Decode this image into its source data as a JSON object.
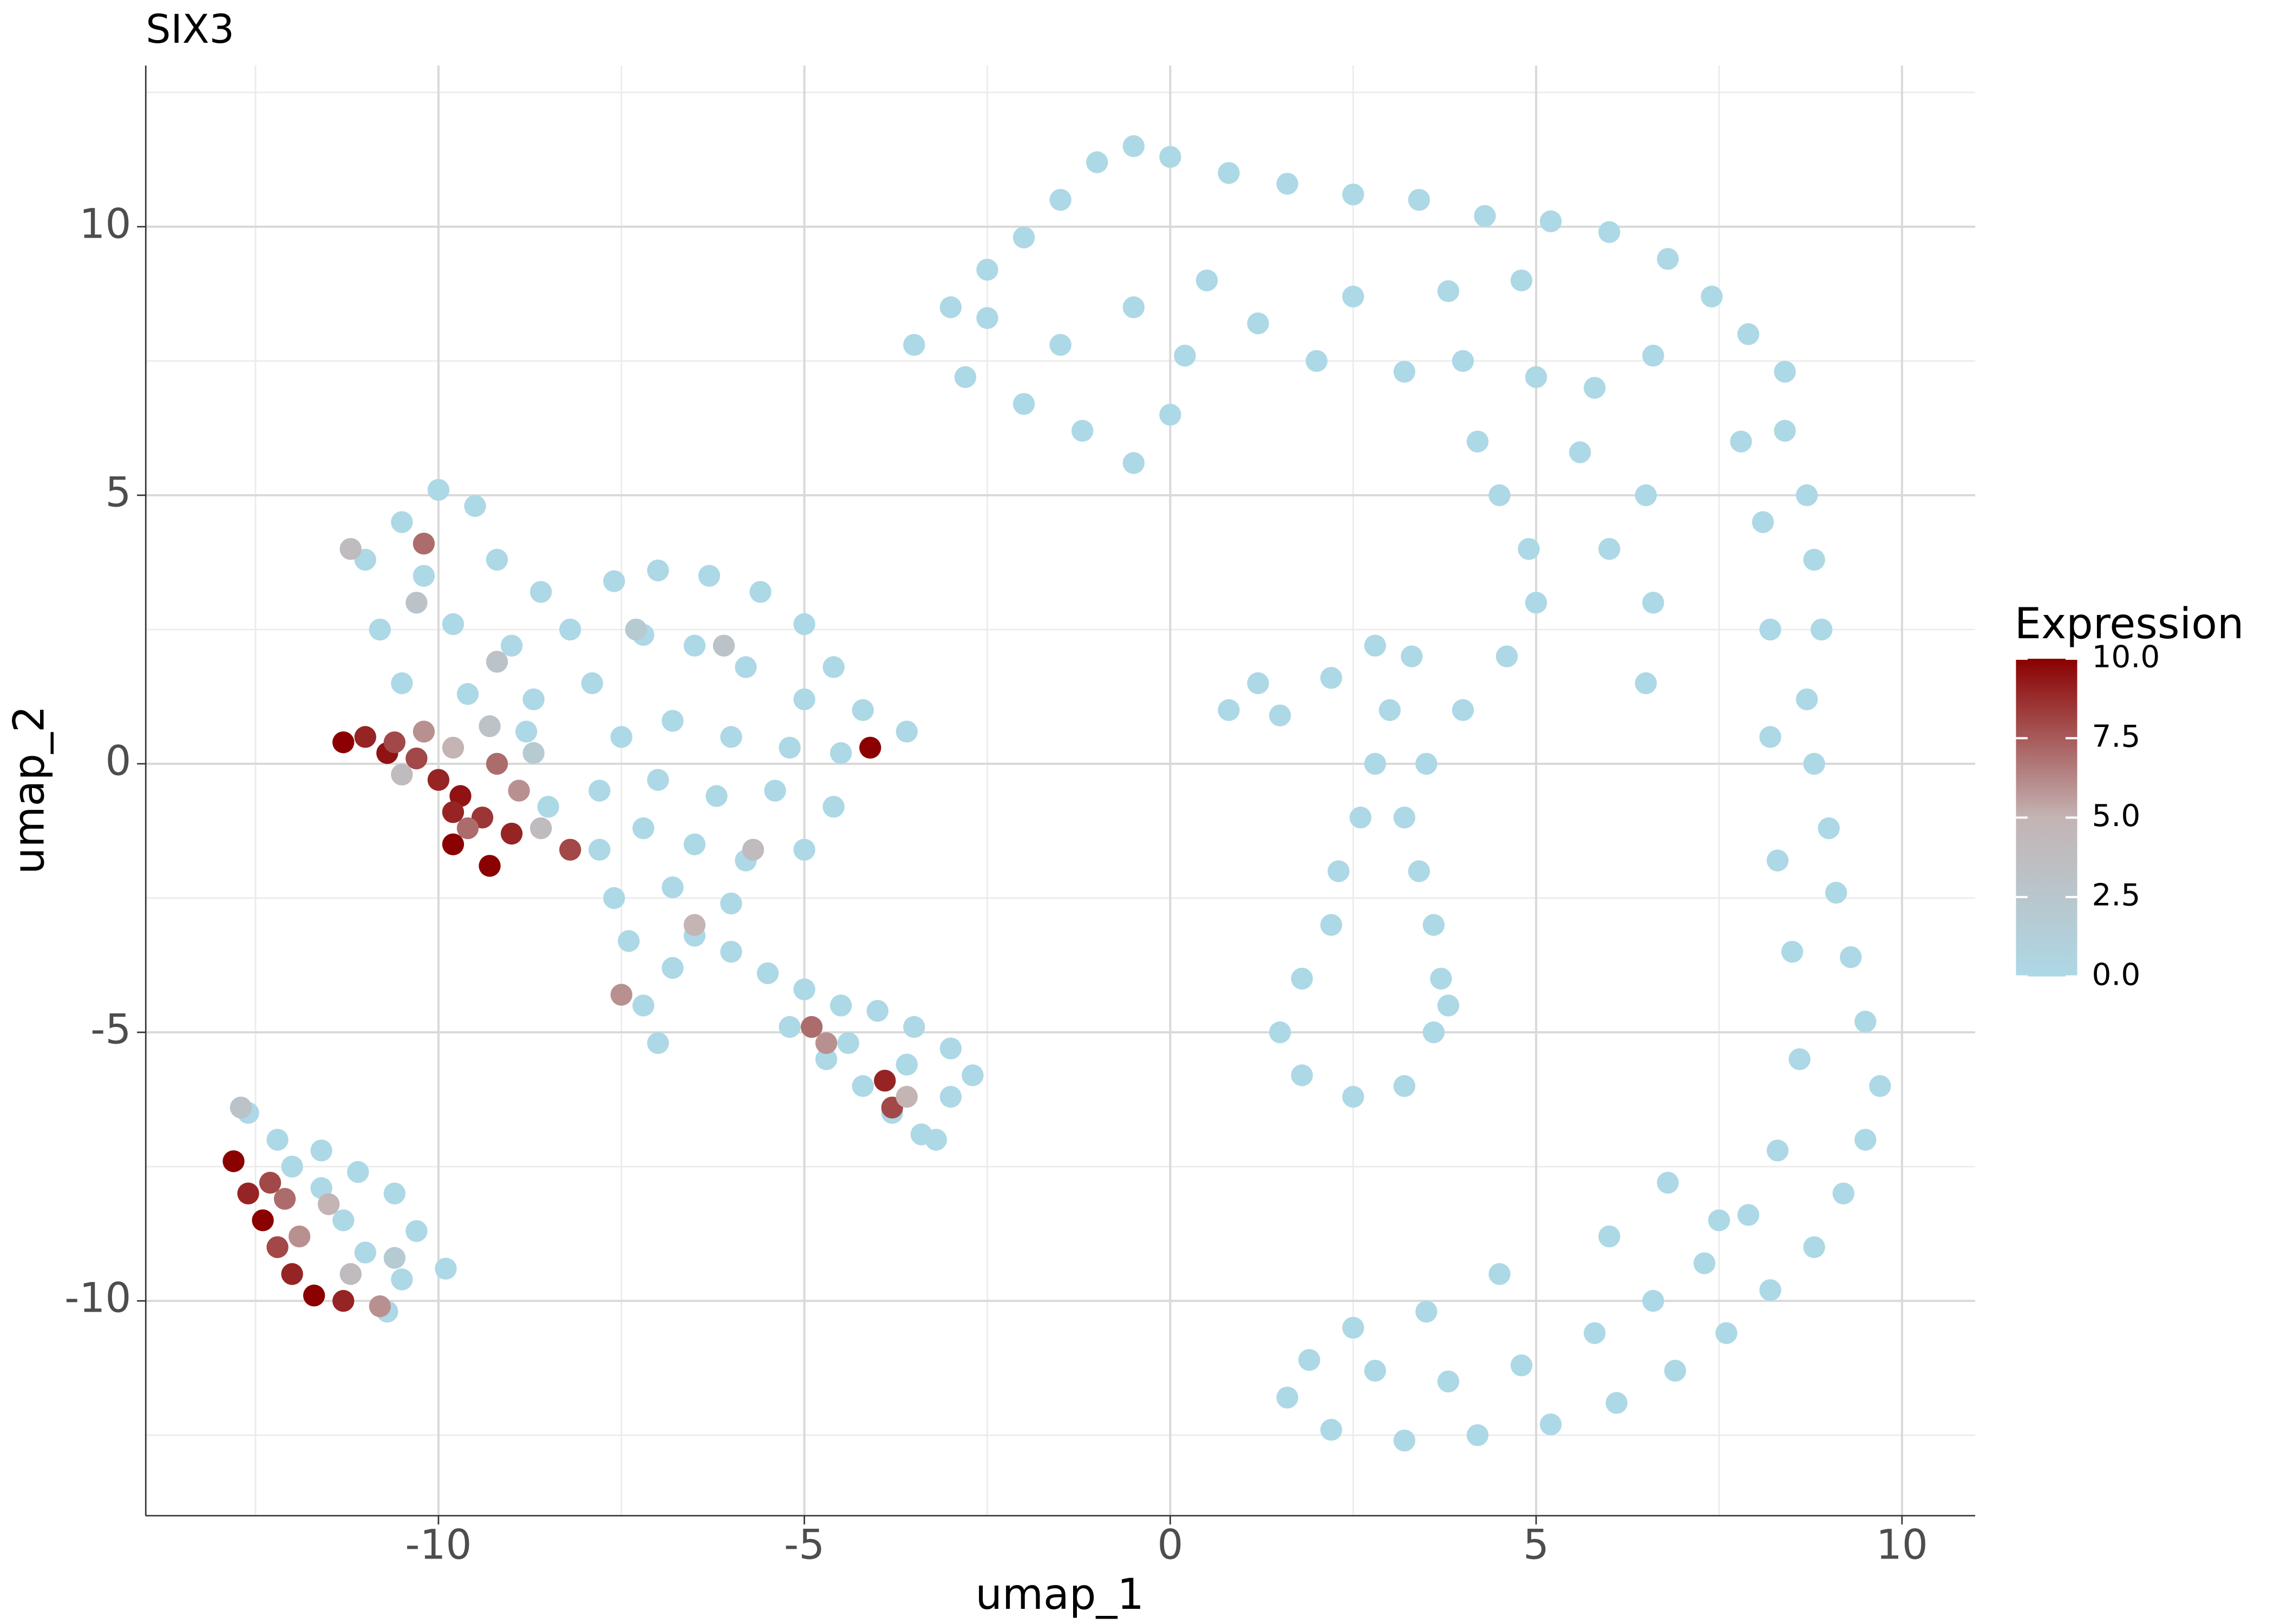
{
  "chart_data": {
    "type": "scatter",
    "title": "SIX3",
    "x_label": "umap_1",
    "y_label": "umap_2",
    "xlim": [
      -14,
      11
    ],
    "ylim": [
      -14,
      13
    ],
    "xticks": [
      -10,
      -5,
      0,
      5,
      10
    ],
    "yticks": [
      -10,
      -5,
      0,
      5,
      10
    ],
    "grid": true,
    "colorbar": {
      "title": "Expression",
      "lim": [
        0,
        10
      ],
      "colors": [
        "#add8e6",
        "#c4b4b4",
        "#8b0000"
      ],
      "ticks": [
        {
          "value": 0,
          "label": "0.0"
        },
        {
          "value": 2.5,
          "label": "2.5"
        },
        {
          "value": 5,
          "label": "5.0"
        },
        {
          "value": 7.5,
          "label": "7.5"
        },
        {
          "value": 10,
          "label": "10.0"
        }
      ]
    },
    "x": [
      -10.5,
      -10,
      -9.5,
      -11,
      -10.2,
      -9.2,
      -8.6,
      -10.8,
      -9.8,
      -9,
      -8.2,
      -7.6,
      -7,
      -6.3,
      -5.6,
      -5,
      -4.6,
      -4.2,
      -3.6,
      -10.5,
      -9.6,
      -8.7,
      -7.9,
      -7.2,
      -6.5,
      -5.8,
      -5,
      -7.5,
      -6.8,
      -6,
      -5.2,
      -4.5,
      -7.8,
      -7,
      -6.2,
      -5.4,
      -4.6,
      -7.8,
      -7.2,
      -6.5,
      -5.8,
      -5,
      -7.6,
      -6.8,
      -6,
      -7.4,
      -6.8,
      -7.2,
      -7,
      -8.5,
      -8.8,
      -6.5,
      -11.3,
      -11,
      -10.7,
      -10.3,
      -10,
      -9.7,
      -9.4,
      -9.8,
      -9.3,
      -9.6,
      -10.2,
      -9.8,
      -9.2,
      -8.9,
      -9,
      -10.5,
      -9.3,
      -8.7,
      -8.2,
      -8.6,
      -10.3,
      -11.2,
      -10.2,
      -9.2,
      -7.3,
      -6.1,
      -4.1,
      -7.5,
      -6.5,
      -5.7,
      -9.8,
      -10.6,
      -6,
      -5.5,
      -5,
      -4.5,
      -4,
      -3.5,
      -3,
      -2.7,
      -5.2,
      -4.7,
      -4.2,
      -3.8,
      -3.4,
      -3,
      -3.6,
      -4.4,
      -3.2,
      -3.9,
      -3.8,
      -4.7,
      -4.9,
      -3.6,
      -12.6,
      -12.2,
      -11.6,
      -11.1,
      -10.6,
      -10.3,
      -9.9,
      -10.5,
      -11,
      -11.3,
      -11.6,
      -12,
      -10.7,
      -12.8,
      -12.6,
      -12.4,
      -12.2,
      -12,
      -11.7,
      -11.3,
      -11.9,
      -11.5,
      -12.1,
      -11.2,
      -10.8,
      -12.7,
      -10.6,
      -12.3,
      -3.5,
      -3,
      -2.5,
      -2,
      -1.5,
      -1,
      -0.5,
      0,
      0.8,
      1.6,
      2.5,
      3.4,
      4.3,
      5.2,
      6,
      6.8,
      7.4,
      7.9,
      8.4,
      -2.8,
      -2,
      -1.2,
      -0.5,
      0,
      -1.5,
      -0.5,
      0.5,
      1.2,
      2,
      2.5,
      3.2,
      4,
      5,
      5.8,
      6.6,
      3.8,
      4.8,
      0.2,
      -2.5,
      8.4,
      8.7,
      8.8,
      8.9,
      8.7,
      8.8,
      9,
      9.1,
      9.3,
      9.5,
      9.7,
      9.5,
      9.2,
      8.8,
      8.2,
      7.6,
      6.9,
      6.1,
      5.2,
      4.2,
      3.2,
      2.2,
      1.6,
      1.9,
      2.8,
      3.8,
      4.8,
      5.8,
      6.6,
      7.3,
      7.9,
      8.3,
      8.6,
      8.5,
      8.3,
      8.2,
      8.2,
      8.1,
      7.8,
      6.8,
      7.5,
      6,
      2.5,
      3.5,
      4.5,
      4.2,
      4.5,
      4.9,
      5,
      4.6,
      4,
      3.5,
      3.2,
      3.4,
      3.6,
      3.7,
      3.6,
      3.2,
      2.5,
      1.8,
      1.5,
      1.8,
      2.2,
      2.3,
      2.6,
      2.8,
      3,
      3.3,
      1.5,
      0.8,
      1.2,
      2.2,
      2.8,
      6,
      6.6,
      6.5,
      5.6,
      6.5,
      3.8
    ],
    "y": [
      4.5,
      5.1,
      4.8,
      3.8,
      3.5,
      3.8,
      3.2,
      2.5,
      2.6,
      2.2,
      2.5,
      3.4,
      3.6,
      3.5,
      3.2,
      2.6,
      1.8,
      1,
      0.6,
      1.5,
      1.3,
      1.2,
      1.5,
      2.4,
      2.2,
      1.8,
      1.2,
      0.5,
      0.8,
      0.5,
      0.3,
      0.2,
      -0.5,
      -0.3,
      -0.6,
      -0.5,
      -0.8,
      -1.6,
      -1.2,
      -1.5,
      -1.8,
      -1.6,
      -2.5,
      -2.3,
      -2.6,
      -3.3,
      -3.8,
      -4.5,
      -5.2,
      -0.8,
      0.6,
      -3.2,
      0.4,
      0.5,
      0.2,
      0.1,
      -0.3,
      -0.6,
      -1,
      -1.5,
      -1.9,
      -1.2,
      0.6,
      0.3,
      0,
      -0.5,
      -1.3,
      -0.2,
      0.7,
      0.2,
      -1.6,
      -1.2,
      3,
      4,
      4.1,
      1.9,
      2.5,
      2.2,
      0.3,
      -4.3,
      -3,
      -1.6,
      -0.9,
      0.4,
      -3.5,
      -3.9,
      -4.2,
      -4.5,
      -4.6,
      -4.9,
      -5.3,
      -5.8,
      -4.9,
      -5.5,
      -6,
      -6.5,
      -6.9,
      -6.2,
      -5.6,
      -5.2,
      -7,
      -5.9,
      -6.4,
      -5.2,
      -4.9,
      -6.2,
      -6.5,
      -7,
      -7.2,
      -7.6,
      -8,
      -8.7,
      -9.4,
      -9.6,
      -9.1,
      -8.5,
      -7.9,
      -7.5,
      -10.2,
      -7.4,
      -8,
      -8.5,
      -9,
      -9.5,
      -9.9,
      -10,
      -8.8,
      -8.2,
      -8.1,
      -9.5,
      -10.1,
      -6.4,
      -9.2,
      -7.8,
      7.8,
      8.5,
      9.2,
      9.8,
      10.5,
      11.2,
      11.5,
      11.3,
      11,
      10.8,
      10.6,
      10.5,
      10.2,
      10.1,
      9.9,
      9.4,
      8.7,
      8,
      7.3,
      7.2,
      6.7,
      6.2,
      5.6,
      6.5,
      7.8,
      8.5,
      9,
      8.2,
      7.5,
      8.7,
      7.3,
      7.5,
      7.2,
      7,
      7.6,
      8.8,
      9,
      7.6,
      8.3,
      6.2,
      5,
      3.8,
      2.5,
      1.2,
      0,
      -1.2,
      -2.4,
      -3.6,
      -4.8,
      -6,
      -7,
      -8,
      -9,
      -9.8,
      -10.6,
      -11.3,
      -11.9,
      -12.3,
      -12.5,
      -12.6,
      -12.4,
      -11.8,
      -11.1,
      -11.3,
      -11.5,
      -11.2,
      -10.6,
      -10,
      -9.3,
      -8.4,
      -7.2,
      -5.5,
      -3.5,
      -1.8,
      0.5,
      2.5,
      4.5,
      6,
      -7.8,
      -8.5,
      -8.8,
      -10.5,
      -10.2,
      -9.5,
      6,
      5,
      4,
      3,
      2,
      1,
      0,
      -1,
      -2,
      -3,
      -4,
      -5,
      -6,
      -6.2,
      -5.8,
      -5,
      -4,
      -3,
      -2,
      -1,
      0,
      1,
      2,
      0.9,
      1,
      1.5,
      1.6,
      2.2,
      4,
      3,
      5,
      5.8,
      1.5,
      -4.5
    ],
    "expression": [
      0,
      0,
      0,
      0,
      0,
      0,
      0,
      0,
      0,
      0,
      0,
      0,
      0,
      0,
      0,
      0,
      0,
      0,
      0,
      0,
      0,
      0,
      0,
      0,
      0,
      0,
      0,
      0,
      0,
      0,
      0,
      0,
      0,
      0,
      0,
      0,
      0,
      0,
      0,
      0,
      0,
      0,
      0,
      0,
      0,
      0,
      0,
      0,
      0,
      0,
      0,
      0,
      10,
      9,
      9.5,
      8,
      9,
      9.5,
      8.5,
      10,
      10,
      7,
      6,
      5,
      7,
      6,
      9,
      4,
      3,
      2,
      8,
      4,
      3,
      4,
      7,
      3,
      2,
      3,
      10,
      6,
      5,
      4,
      9,
      8,
      0,
      0,
      0,
      0,
      0,
      0,
      0,
      0,
      0,
      0,
      0,
      0,
      0,
      0,
      0,
      0,
      0,
      9,
      8,
      6,
      7,
      5,
      0,
      0,
      0,
      0,
      0,
      0,
      0,
      0,
      0,
      0,
      0,
      0,
      0,
      10,
      9,
      10,
      8,
      9,
      10,
      9,
      6,
      5,
      7,
      4,
      6,
      3,
      2,
      8,
      0,
      0,
      0,
      0,
      0,
      0,
      0,
      0,
      0,
      0,
      0,
      0,
      0,
      0,
      0,
      0,
      0,
      0,
      0,
      0,
      0,
      0,
      0,
      0,
      0,
      0,
      0,
      0,
      0,
      0,
      0,
      0,
      0,
      0,
      0,
      0,
      0,
      0,
      0,
      0,
      0,
      0,
      0,
      0,
      0,
      0,
      0,
      0,
      0,
      0,
      0,
      0,
      0,
      0,
      0,
      0,
      0,
      0,
      0,
      0,
      0,
      0,
      0,
      0,
      0,
      0,
      0,
      0,
      0,
      0,
      0,
      0,
      0,
      0,
      0,
      0,
      0,
      0,
      0,
      0,
      0,
      0,
      0,
      0,
      0,
      0,
      0,
      0,
      0,
      0,
      0,
      0,
      0,
      0,
      0,
      0,
      0,
      0,
      0,
      0,
      0,
      0,
      0,
      0,
      0,
      0,
      0,
      0,
      0,
      0,
      0,
      0,
      0,
      0,
      0,
      0,
      0,
      0
    ]
  }
}
